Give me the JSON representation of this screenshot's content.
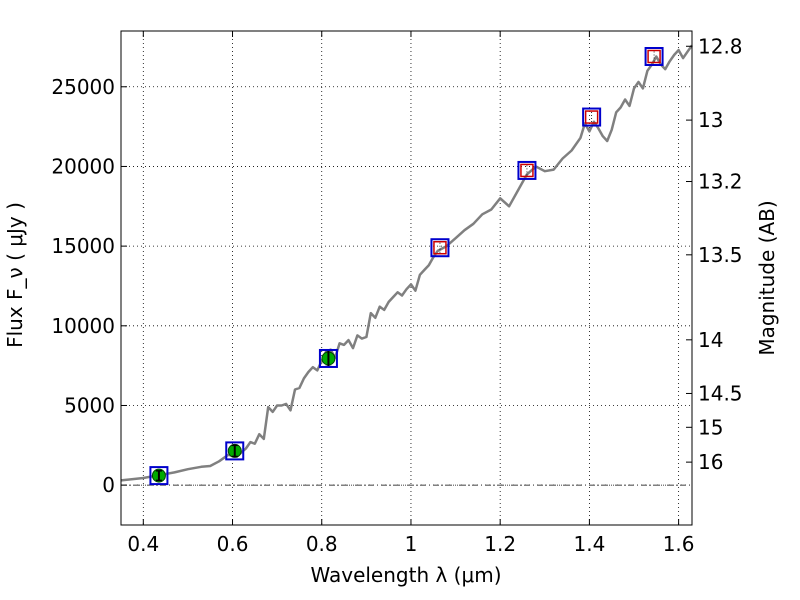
{
  "chart_data": {
    "type": "line",
    "xlabel": "Wavelength  λ (μm)",
    "ylabel": "Flux  F_ν ( μJy )",
    "y2label": "Magnitude (AB)",
    "xlim": [
      0.35,
      1.63
    ],
    "ylim": [
      -2500,
      28500
    ],
    "grid": true,
    "x_ticks": [
      {
        "value": 0.4,
        "label": "0.4"
      },
      {
        "value": 0.6,
        "label": "0.6"
      },
      {
        "value": 0.8,
        "label": "0.8"
      },
      {
        "value": 1.0,
        "label": "1"
      },
      {
        "value": 1.2,
        "label": "1.2"
      },
      {
        "value": 1.4,
        "label": "1.4"
      },
      {
        "value": 1.6,
        "label": "1.6"
      }
    ],
    "y_ticks": [
      {
        "value": 0,
        "label": "0"
      },
      {
        "value": 5000,
        "label": "5000"
      },
      {
        "value": 10000,
        "label": "10000"
      },
      {
        "value": 15000,
        "label": "15000"
      },
      {
        "value": 20000,
        "label": "20000"
      },
      {
        "value": 25000,
        "label": "25000"
      }
    ],
    "mag_ticks": [
      {
        "mag": 12.8,
        "label": "12.8"
      },
      {
        "mag": 13.0,
        "label": "13"
      },
      {
        "mag": 13.2,
        "label": "13.2"
      },
      {
        "mag": 13.5,
        "label": "13.5"
      },
      {
        "mag": 14.0,
        "label": "14"
      },
      {
        "mag": 14.5,
        "label": "14.5"
      },
      {
        "mag": 15.0,
        "label": "15"
      },
      {
        "mag": 16.0,
        "label": "16"
      }
    ],
    "series": [
      {
        "style": "gray line",
        "color": "#808080",
        "x": [
          0.35,
          0.4,
          0.44,
          0.47,
          0.5,
          0.53,
          0.55,
          0.57,
          0.59,
          0.61,
          0.63,
          0.64,
          0.65,
          0.66,
          0.67,
          0.68,
          0.69,
          0.7,
          0.71,
          0.72,
          0.73,
          0.74,
          0.75,
          0.76,
          0.77,
          0.78,
          0.79,
          0.8,
          0.81,
          0.82,
          0.83,
          0.84,
          0.85,
          0.86,
          0.87,
          0.88,
          0.89,
          0.9,
          0.91,
          0.92,
          0.93,
          0.94,
          0.95,
          0.96,
          0.97,
          0.98,
          0.99,
          1.0,
          1.01,
          1.02,
          1.03,
          1.04,
          1.05,
          1.06,
          1.08,
          1.1,
          1.12,
          1.14,
          1.16,
          1.18,
          1.2,
          1.22,
          1.24,
          1.26,
          1.28,
          1.3,
          1.32,
          1.34,
          1.36,
          1.38,
          1.39,
          1.4,
          1.41,
          1.42,
          1.43,
          1.44,
          1.45,
          1.46,
          1.47,
          1.48,
          1.49,
          1.5,
          1.51,
          1.52,
          1.53,
          1.54,
          1.55,
          1.56,
          1.57,
          1.58,
          1.59,
          1.6,
          1.61,
          1.62,
          1.63
        ],
        "y": [
          300,
          450,
          650,
          800,
          1000,
          1150,
          1200,
          1500,
          1900,
          1800,
          2300,
          2700,
          2600,
          3200,
          2900,
          4900,
          4600,
          5000,
          5000,
          5100,
          4700,
          6000,
          6100,
          6700,
          7100,
          7400,
          7200,
          7800,
          8400,
          8500,
          8000,
          8900,
          8800,
          9100,
          8600,
          9400,
          9200,
          9300,
          10800,
          10500,
          11200,
          11000,
          11500,
          11800,
          12100,
          11900,
          12300,
          12600,
          12200,
          13200,
          13500,
          13800,
          14300,
          14700,
          15000,
          15500,
          16000,
          16400,
          17000,
          17300,
          18000,
          17500,
          18500,
          19500,
          20000,
          19700,
          19800,
          20500,
          21000,
          21800,
          22700,
          22200,
          22800,
          22400,
          21900,
          21600,
          22300,
          23400,
          23700,
          24200,
          23800,
          24900,
          25300,
          24900,
          26000,
          26400,
          26900,
          26400,
          26100,
          26600,
          27000,
          27300,
          26800,
          27200,
          27600
        ]
      },
      {
        "style": "green filled circles with error bars",
        "color": "#00aa00",
        "x": [
          0.435,
          0.605,
          0.815
        ],
        "y": [
          600,
          2150,
          7950
        ],
        "err": [
          300,
          350,
          500
        ]
      },
      {
        "style": "blue open squares",
        "color": "#0000cc",
        "x": [
          0.435,
          0.605,
          0.815,
          1.065,
          1.26,
          1.405,
          1.545
        ],
        "y": [
          600,
          2150,
          7950,
          14900,
          19750,
          23100,
          26900
        ]
      },
      {
        "style": "red open squares with error bars",
        "color": "#cc0000",
        "x": [
          1.065,
          1.26,
          1.405,
          1.545
        ],
        "y": [
          14900,
          19750,
          23100,
          26900
        ]
      }
    ]
  }
}
